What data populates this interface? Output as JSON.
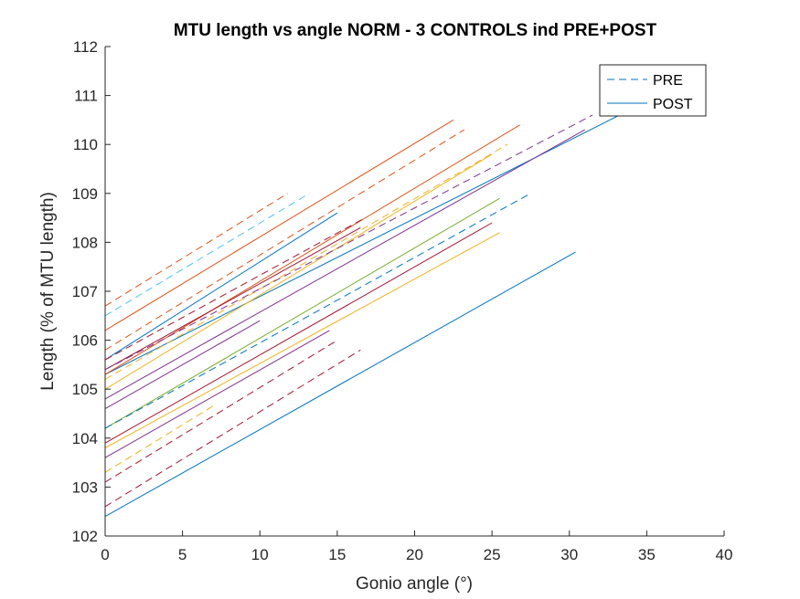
{
  "chart_data": {
    "type": "line",
    "title": "MTU length vs angle NORM - 3 CONTROLS ind PRE+POST",
    "xlabel": "Gonio angle (°)",
    "ylabel": "Length (% of MTU length)",
    "xlim": [
      0,
      40
    ],
    "ylim": [
      102,
      112
    ],
    "xticks": [
      0,
      5,
      10,
      15,
      20,
      25,
      30,
      35,
      40
    ],
    "yticks": [
      102,
      103,
      104,
      105,
      106,
      107,
      108,
      109,
      110,
      111,
      112
    ],
    "grid": false,
    "legend": {
      "placement": "top-right",
      "entries": [
        {
          "label": "PRE",
          "style": "dashed",
          "color": "#0072BD"
        },
        {
          "label": "POST",
          "style": "solid",
          "color": "#0072BD"
        }
      ]
    },
    "series": [
      {
        "style": "solid",
        "color": "#0072BD",
        "x": [
          0,
          30.4
        ],
        "y": [
          102.4,
          107.8
        ]
      },
      {
        "style": "solid",
        "color": "#0072BD",
        "x": [
          0,
          15.0
        ],
        "y": [
          105.6,
          108.6
        ]
      },
      {
        "style": "solid",
        "color": "#0072BD",
        "x": [
          0,
          37.0
        ],
        "y": [
          105.3,
          111.2
        ]
      },
      {
        "style": "solid",
        "color": "#D95319",
        "x": [
          0,
          22.5
        ],
        "y": [
          106.2,
          110.5
        ]
      },
      {
        "style": "solid",
        "color": "#D95319",
        "x": [
          0,
          26.8
        ],
        "y": [
          105.3,
          110.4
        ]
      },
      {
        "style": "solid",
        "color": "#EDB120",
        "x": [
          0,
          25.0
        ],
        "y": [
          105.0,
          109.8
        ]
      },
      {
        "style": "solid",
        "color": "#EDB120",
        "x": [
          0,
          25.5
        ],
        "y": [
          103.8,
          108.2
        ]
      },
      {
        "style": "solid",
        "color": "#7E2F8E",
        "x": [
          0,
          31.0
        ],
        "y": [
          104.8,
          110.3
        ]
      },
      {
        "style": "solid",
        "color": "#7E2F8E",
        "x": [
          0,
          10.0
        ],
        "y": [
          104.6,
          106.4
        ]
      },
      {
        "style": "solid",
        "color": "#7E2F8E",
        "x": [
          0,
          14.5
        ],
        "y": [
          103.6,
          106.2
        ]
      },
      {
        "style": "solid",
        "color": "#77AC30",
        "x": [
          0,
          25.5
        ],
        "y": [
          104.2,
          108.9
        ]
      },
      {
        "style": "solid",
        "color": "#A2142F",
        "x": [
          0,
          25.0
        ],
        "y": [
          103.9,
          108.4
        ]
      },
      {
        "style": "solid",
        "color": "#A2142F",
        "x": [
          0,
          16.5
        ],
        "y": [
          105.4,
          108.3
        ]
      },
      {
        "style": "dashed",
        "color": "#0072BD",
        "x": [
          0,
          27.5
        ],
        "y": [
          104.2,
          109.0
        ]
      },
      {
        "style": "dashed",
        "color": "#4DBEEE",
        "x": [
          0,
          13.2
        ],
        "y": [
          106.5,
          109.0
        ]
      },
      {
        "style": "dashed",
        "color": "#D95319",
        "x": [
          0,
          11.8
        ],
        "y": [
          106.7,
          109.0
        ]
      },
      {
        "style": "dashed",
        "color": "#D95319",
        "x": [
          0,
          23.2
        ],
        "y": [
          105.8,
          110.3
        ]
      },
      {
        "style": "dashed",
        "color": "#EDB120",
        "x": [
          0,
          26.0
        ],
        "y": [
          105.2,
          110.0
        ]
      },
      {
        "style": "dashed",
        "color": "#EDB120",
        "x": [
          0,
          7.2
        ],
        "y": [
          103.3,
          104.7
        ]
      },
      {
        "style": "dashed",
        "color": "#7E2F8E",
        "x": [
          0,
          31.5
        ],
        "y": [
          105.4,
          110.6
        ]
      },
      {
        "style": "dashed",
        "color": "#A2142F",
        "x": [
          0,
          15.0
        ],
        "y": [
          103.1,
          106.0
        ]
      },
      {
        "style": "dashed",
        "color": "#A2142F",
        "x": [
          0,
          16.5
        ],
        "y": [
          102.6,
          105.8
        ]
      },
      {
        "style": "dashed",
        "color": "#A2142F",
        "x": [
          0,
          16.8
        ],
        "y": [
          105.6,
          108.5
        ]
      }
    ]
  }
}
